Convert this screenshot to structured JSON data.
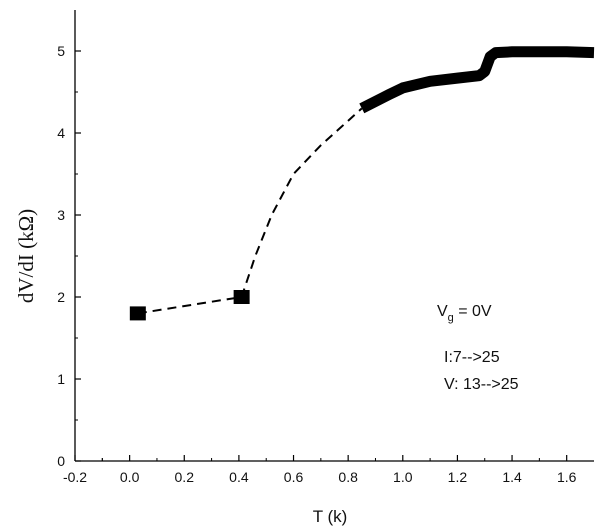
{
  "chart_data": {
    "type": "line",
    "xlabel": "T (k)",
    "ylabel": "dV/dI (kΩ)",
    "xlim": [
      -0.2,
      1.7
    ],
    "ylim": [
      0,
      5.5
    ],
    "x_ticks": [
      "-0.2",
      "0.0",
      "0.2",
      "0.4",
      "0.6",
      "0.8",
      "1.0",
      "1.2",
      "1.4",
      "1.6"
    ],
    "y_ticks": [
      "0",
      "1",
      "2",
      "3",
      "4",
      "5"
    ],
    "grid": false,
    "series": [
      {
        "style": "square-markers",
        "x": [
          0.03,
          0.41
        ],
        "y": [
          1.8,
          2.0
        ]
      },
      {
        "style": "dashed-line",
        "x": [
          0.03,
          0.41,
          0.46,
          0.52,
          0.6,
          0.7,
          0.8,
          0.85
        ],
        "y": [
          1.8,
          2.0,
          2.5,
          3.0,
          3.5,
          3.85,
          4.15,
          4.3
        ]
      },
      {
        "style": "thick-solid-line",
        "x": [
          0.85,
          0.95,
          1.0,
          1.1,
          1.2,
          1.28,
          1.3,
          1.32,
          1.34,
          1.4,
          1.5,
          1.6,
          1.7
        ],
        "y": [
          4.3,
          4.47,
          4.55,
          4.63,
          4.67,
          4.7,
          4.75,
          4.93,
          4.98,
          4.99,
          4.99,
          4.99,
          4.98
        ]
      }
    ],
    "annotations": {
      "vg_main": "V",
      "vg_sub": "g",
      "vg_rest": " = 0V",
      "line_i": "I:7-->25",
      "line_v": "V: 13-->25"
    }
  }
}
